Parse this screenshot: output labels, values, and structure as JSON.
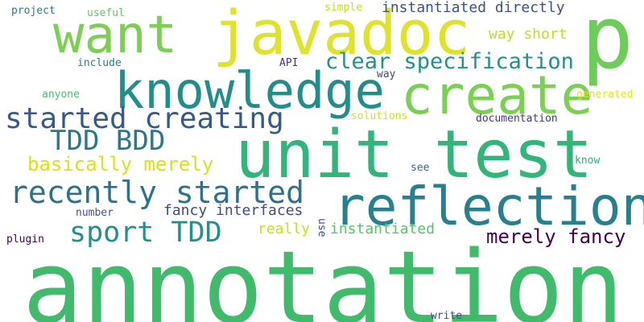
{
  "cloud": {
    "background": "#ffffff",
    "words": [
      {
        "id": "annotation",
        "text": "annotation",
        "color": "#3fbb6b"
      },
      {
        "id": "unit-test",
        "text": "unit test",
        "color": "#32b57a"
      },
      {
        "id": "javadoc",
        "text": "javadoc",
        "color": "#dfe22a"
      },
      {
        "id": "p",
        "text": "p",
        "color": "#6ccd59"
      },
      {
        "id": "want",
        "text": "want",
        "color": "#7bd051"
      },
      {
        "id": "knowledge",
        "text": "knowledge",
        "color": "#218e8c"
      },
      {
        "id": "create",
        "text": "create",
        "color": "#7ad151"
      },
      {
        "id": "reflection",
        "text": "reflection",
        "color": "#27808e"
      },
      {
        "id": "recently-started",
        "text": "recently started",
        "color": "#2c728e"
      },
      {
        "id": "started-creating",
        "text": "started creating",
        "color": "#35598c"
      },
      {
        "id": "clear-specification",
        "text": "clear specification",
        "color": "#21918c"
      },
      {
        "id": "tdd-bdd",
        "text": "TDD BDD",
        "color": "#2a788e"
      },
      {
        "id": "sport-tdd",
        "text": "sport TDD",
        "color": "#21918c"
      },
      {
        "id": "basically-merely",
        "text": "basically merely",
        "color": "#d8e219"
      },
      {
        "id": "merely-fancy",
        "text": "merely fancy",
        "color": "#440154"
      },
      {
        "id": "instantiated-directly",
        "text": "instantiated directly",
        "color": "#3b528b"
      },
      {
        "id": "fancy-interfaces",
        "text": "fancy interfaces",
        "color": "#3e4a89"
      },
      {
        "id": "really",
        "text": "really",
        "color": "#c8e020"
      },
      {
        "id": "instantiated",
        "text": "instantiated",
        "color": "#54c568"
      },
      {
        "id": "way-short",
        "text": "way short",
        "color": "#bddf26"
      },
      {
        "id": "project",
        "text": "project",
        "color": "#2a788e"
      },
      {
        "id": "useful",
        "text": "useful",
        "color": "#5ec962"
      },
      {
        "id": "simple",
        "text": "simple",
        "color": "#c2df23"
      },
      {
        "id": "include",
        "text": "include",
        "color": "#26828e"
      },
      {
        "id": "api",
        "text": "API",
        "color": "#46337f"
      },
      {
        "id": "way",
        "text": "way",
        "color": "#404588"
      },
      {
        "id": "anyone",
        "text": "anyone",
        "color": "#44bf70"
      },
      {
        "id": "generated",
        "text": "generated",
        "color": "#e5e419"
      },
      {
        "id": "solutions",
        "text": "solutions",
        "color": "#d0e11c"
      },
      {
        "id": "documentation",
        "text": "documentation",
        "color": "#453781"
      },
      {
        "id": "know",
        "text": "know",
        "color": "#29af7f"
      },
      {
        "id": "see",
        "text": "see",
        "color": "#31688e"
      },
      {
        "id": "number",
        "text": "number",
        "color": "#3b528b"
      },
      {
        "id": "use",
        "text": "use",
        "color": "#3e4989"
      },
      {
        "id": "plugin",
        "text": "plugin",
        "color": "#440154"
      },
      {
        "id": "write",
        "text": "write",
        "color": "#3e4989"
      }
    ]
  }
}
